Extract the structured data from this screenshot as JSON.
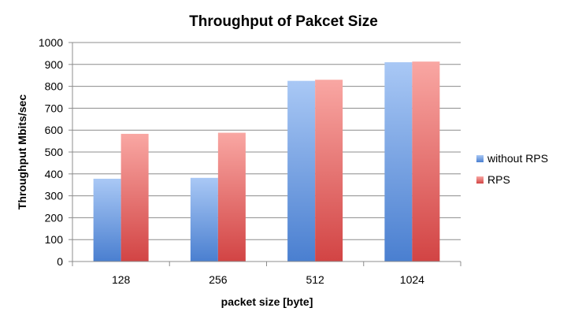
{
  "chart_data": {
    "type": "bar",
    "title": "Throughput of Pakcet Size",
    "xlabel": "packet size [byte]",
    "ylabel": "Throughput Mbits/sec",
    "categories": [
      "128",
      "256",
      "512",
      "1024"
    ],
    "series": [
      {
        "name": "without RPS",
        "values": [
          378,
          382,
          825,
          910
        ],
        "color": "#4f81bd"
      },
      {
        "name": "RPS",
        "values": [
          583,
          588,
          830,
          913
        ],
        "color": "#c0504d"
      }
    ],
    "ylim": [
      0,
      1000
    ],
    "yticks": [
      "0",
      "100",
      "200",
      "300",
      "400",
      "500",
      "600",
      "700",
      "800",
      "900",
      "1000"
    ],
    "grid": "horizontal",
    "legend_position": "right"
  }
}
